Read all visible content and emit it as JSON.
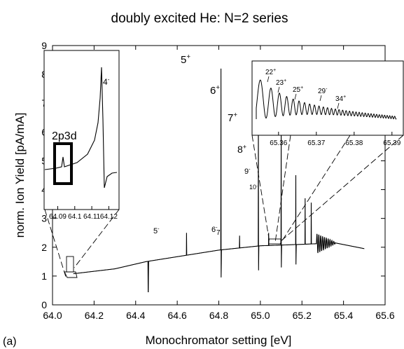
{
  "chart_data": {
    "type": "line",
    "title": "doubly excited He: N=2 series",
    "panel_label": "(a)",
    "xlabel": "Monochromator setting [eV]",
    "ylabel": "norm. Ion Yield [pA/mA]",
    "xlim": [
      64.0,
      65.6
    ],
    "ylim": [
      0,
      9
    ],
    "x_ticks": [
      "64.0",
      "64.2",
      "64.4",
      "64.6",
      "64.8",
      "65.0",
      "65.2",
      "65.4",
      "65.6"
    ],
    "y_ticks": [
      "0",
      "1",
      "2",
      "3",
      "4",
      "5",
      "6",
      "7",
      "8",
      "9"
    ],
    "grid": false,
    "baseline": [
      [
        64.1,
        1.08
      ],
      [
        64.3,
        1.25
      ],
      [
        64.45,
        1.5
      ],
      [
        64.8,
        1.9
      ],
      [
        65.0,
        2.05
      ],
      [
        65.2,
        2.1
      ],
      [
        65.36,
        2.15
      ],
      [
        65.5,
        1.95
      ]
    ],
    "resonances": [
      {
        "label": "4",
        "sign": "-",
        "x": 64.46,
        "min": 0.45
      },
      {
        "label": "5",
        "sign": "-",
        "x": 64.645,
        "max": 2.5
      },
      {
        "label": "5",
        "sign": "+",
        "x": 64.81,
        "max": 8.2,
        "min": 0.95
      },
      {
        "label": "6",
        "sign": "-",
        "x": 64.9,
        "max": 2.4
      },
      {
        "label": "6",
        "sign": "+",
        "x": 64.99,
        "max": 6.95,
        "min": 1.2
      },
      {
        "label": "7",
        "sign": "",
        "x": 65.04,
        "max": 2.5
      },
      {
        "label": "7",
        "sign": "+",
        "x": 65.1,
        "max": 6.25,
        "min": 1.3
      },
      {
        "label": "8",
        "sign": "+",
        "x": 65.17,
        "max": 4.5,
        "min": 1.4
      },
      {
        "label": "9",
        "sign": "-",
        "x": 65.215,
        "max": 3.7
      },
      {
        "label": "10",
        "sign": "-",
        "x": 65.245,
        "max": 3.55
      }
    ],
    "annotation_labels": [
      {
        "text": "5",
        "sup": "+"
      },
      {
        "text": "6",
        "sup": "+"
      },
      {
        "text": "7",
        "sup": "+"
      },
      {
        "text": "8",
        "sup": "+"
      },
      {
        "text": "9",
        "sup": "-"
      },
      {
        "text": "10",
        "sup": "-"
      },
      {
        "text": "5",
        "sup": "-"
      },
      {
        "text": "6",
        "sup": "-"
      },
      {
        "text": "7",
        "sup": ""
      }
    ],
    "inset_left": {
      "x_ticks": [
        "64.09",
        "64.1",
        "64.11",
        "64.12"
      ],
      "xlim": [
        64.082,
        64.126
      ],
      "peak_label": {
        "text": "4",
        "sup": "-"
      },
      "box_label": "2p3d",
      "peak_x": 64.103
    },
    "inset_right": {
      "x_ticks": [
        "65.36",
        "65.37",
        "65.38",
        "65.39"
      ],
      "xlim": [
        65.353,
        65.393
      ],
      "peak_labels": [
        {
          "text": "22",
          "sup": "+"
        },
        {
          "text": "23",
          "sup": "+"
        },
        {
          "text": "25",
          "sup": "+"
        },
        {
          "text": "29",
          "sup": "-"
        },
        {
          "text": "34",
          "sup": "+"
        }
      ]
    }
  }
}
